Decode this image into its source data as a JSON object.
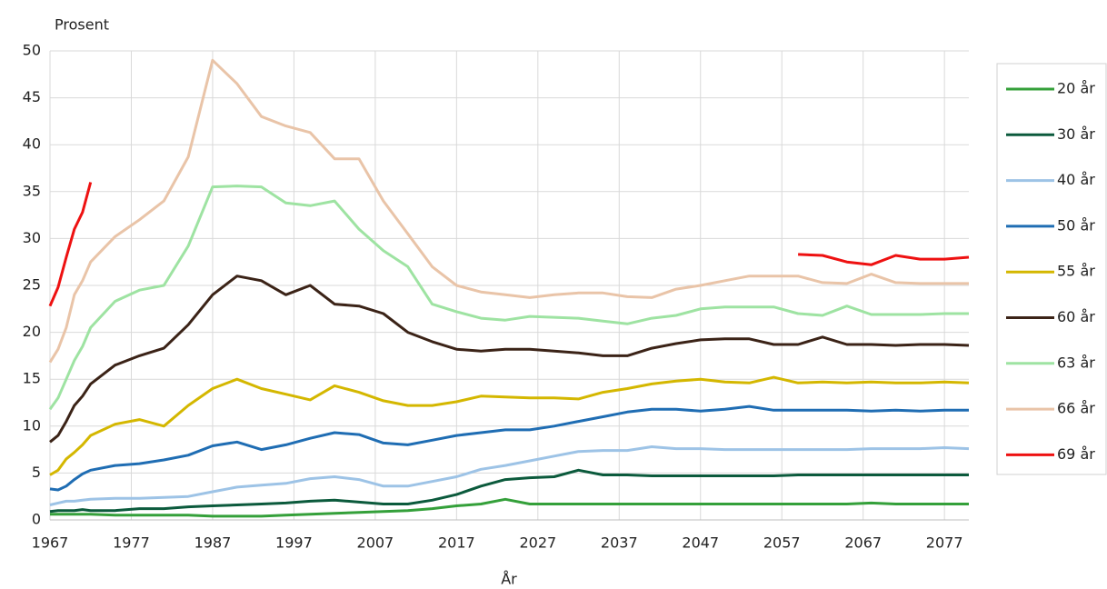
{
  "chart_data": {
    "type": "line",
    "y_label": "Prosent",
    "x_label": "År",
    "x": [
      1967,
      1968,
      1969,
      1970,
      1971,
      1972,
      1975,
      1978,
      1981,
      1984,
      1987,
      1990,
      1993,
      1996,
      1999,
      2002,
      2005,
      2008,
      2011,
      2014,
      2017,
      2020,
      2023,
      2026,
      2029,
      2032,
      2035,
      2038,
      2041,
      2044,
      2047,
      2050,
      2053,
      2056,
      2059,
      2062,
      2065,
      2068,
      2071,
      2074,
      2077,
      2080
    ],
    "xlim": [
      1967,
      2080
    ],
    "xticks": [
      1967,
      1977,
      1987,
      1997,
      2007,
      2017,
      2027,
      2037,
      2047,
      2057,
      2067,
      2077
    ],
    "ylim": [
      0,
      50
    ],
    "yticks": [
      0,
      5,
      10,
      15,
      20,
      25,
      30,
      35,
      40,
      45,
      50
    ],
    "grid": true,
    "legend": "right",
    "series": [
      {
        "name": "20 år",
        "color": "#34a03a",
        "values": [
          0.6,
          0.6,
          0.6,
          0.6,
          0.6,
          0.6,
          0.5,
          0.5,
          0.5,
          0.5,
          0.4,
          0.4,
          0.4,
          0.5,
          0.6,
          0.7,
          0.8,
          0.9,
          1,
          1.2,
          1.5,
          1.7,
          2.2,
          1.7,
          1.7,
          1.7,
          1.7,
          1.7,
          1.7,
          1.7,
          1.7,
          1.7,
          1.7,
          1.7,
          1.7,
          1.7,
          1.7,
          1.8,
          1.7,
          1.7,
          1.7,
          1.7
        ]
      },
      {
        "name": "30 år",
        "color": "#0b5a3c",
        "values": [
          0.9,
          1,
          1,
          1,
          1.1,
          1,
          1,
          1.2,
          1.2,
          1.4,
          1.5,
          1.6,
          1.7,
          1.8,
          2,
          2.1,
          1.9,
          1.7,
          1.7,
          2.1,
          2.7,
          3.6,
          4.3,
          4.5,
          4.6,
          5.3,
          4.8,
          4.8,
          4.7,
          4.7,
          4.7,
          4.7,
          4.7,
          4.7,
          4.8,
          4.8,
          4.8,
          4.8,
          4.8,
          4.8,
          4.8,
          4.8
        ]
      },
      {
        "name": "40 år",
        "color": "#9dc3e6",
        "values": [
          1.6,
          1.8,
          2,
          2,
          2.1,
          2.2,
          2.3,
          2.3,
          2.4,
          2.5,
          3,
          3.5,
          3.7,
          3.9,
          4.4,
          4.6,
          4.3,
          3.6,
          3.6,
          4.1,
          4.6,
          5.4,
          5.8,
          6.3,
          6.8,
          7.3,
          7.4,
          7.4,
          7.8,
          7.6,
          7.6,
          7.5,
          7.5,
          7.5,
          7.5,
          7.5,
          7.5,
          7.6,
          7.6,
          7.6,
          7.7,
          7.6
        ]
      },
      {
        "name": "50 år",
        "color": "#1f6db3",
        "values": [
          3.3,
          3.2,
          3.6,
          4.3,
          4.9,
          5.3,
          5.8,
          6,
          6.4,
          6.9,
          7.9,
          8.3,
          7.5,
          8,
          8.7,
          9.3,
          9.1,
          8.2,
          8,
          8.5,
          9,
          9.3,
          9.6,
          9.6,
          10,
          10.5,
          11,
          11.5,
          11.8,
          11.8,
          11.6,
          11.8,
          12.1,
          11.7,
          11.7,
          11.7,
          11.7,
          11.6,
          11.7,
          11.6,
          11.7,
          11.7
        ]
      },
      {
        "name": "55 år",
        "color": "#d4b700",
        "values": [
          4.8,
          5.3,
          6.5,
          7.2,
          8,
          9,
          10.2,
          10.7,
          10,
          12.2,
          14,
          15,
          14,
          13.4,
          12.8,
          14.3,
          13.6,
          12.7,
          12.2,
          12.2,
          12.6,
          13.2,
          13.1,
          13,
          13,
          12.9,
          13.6,
          14,
          14.5,
          14.8,
          15,
          14.7,
          14.6,
          15.2,
          14.6,
          14.7,
          14.6,
          14.7,
          14.6,
          14.6,
          14.7,
          14.6
        ]
      },
      {
        "name": "60 år",
        "color": "#3b2317",
        "values": [
          8.3,
          9,
          10.5,
          12.2,
          13.2,
          14.5,
          16.5,
          17.5,
          18.3,
          20.8,
          24,
          26,
          25.5,
          24,
          25,
          23,
          22.8,
          22,
          20,
          19,
          18.2,
          18,
          18.2,
          18.2,
          18,
          17.8,
          17.5,
          17.5,
          18.3,
          18.8,
          19.2,
          19.3,
          19.3,
          18.7,
          18.7,
          19.5,
          18.7,
          18.7,
          18.6,
          18.7,
          18.7,
          18.6
        ]
      },
      {
        "name": "63 år",
        "color": "#9ee3a2",
        "values": [
          11.8,
          13,
          15,
          17,
          18.5,
          20.5,
          23.3,
          24.5,
          25,
          29.2,
          35.5,
          35.6,
          35.5,
          33.8,
          33.5,
          34,
          31,
          28.7,
          27,
          23,
          22.2,
          21.5,
          21.3,
          21.7,
          21.6,
          21.5,
          21.2,
          20.9,
          21.5,
          21.8,
          22.5,
          22.7,
          22.7,
          22.7,
          22,
          21.8,
          22.8,
          21.9,
          21.9,
          21.9,
          22,
          22
        ]
      },
      {
        "name": "66 år",
        "color": "#e9c4a8",
        "values": [
          16.8,
          18.2,
          20.5,
          24,
          25.5,
          27.5,
          30.2,
          32,
          34,
          38.7,
          49,
          46.5,
          43,
          42,
          41.3,
          38.5,
          38.5,
          34,
          30.5,
          27,
          25,
          24.3,
          24,
          23.7,
          24,
          24.2,
          24.2,
          23.8,
          23.7,
          24.6,
          25,
          25.5,
          26,
          26,
          26,
          25.3,
          25.2,
          26.2,
          25.3,
          25.2,
          25.2,
          25.2
        ]
      },
      {
        "name": "69 år",
        "color": "#ee1111",
        "values": [
          22.8,
          24.8,
          28,
          31,
          32.8,
          36,
          null,
          null,
          null,
          null,
          null,
          null,
          null,
          null,
          null,
          null,
          null,
          null,
          null,
          null,
          null,
          null,
          null,
          null,
          null,
          null,
          null,
          null,
          null,
          null,
          null,
          null,
          null,
          null,
          28.3,
          28.2,
          27.5,
          27.2,
          28.2,
          27.8,
          27.8,
          28
        ]
      }
    ]
  }
}
